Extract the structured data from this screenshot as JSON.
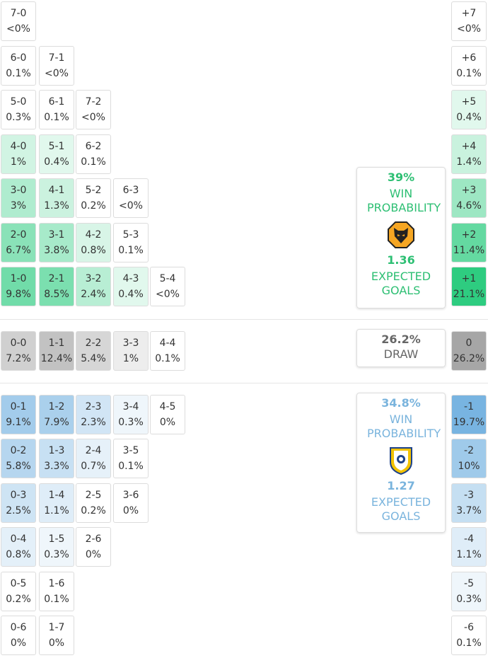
{
  "home_grid": [
    [
      [
        "7-0",
        "<0%"
      ]
    ],
    [
      [
        "6-0",
        "0.1%"
      ],
      [
        "7-1",
        "<0%"
      ]
    ],
    [
      [
        "5-0",
        "0.3%"
      ],
      [
        "6-1",
        "0.1%"
      ],
      [
        "7-2",
        "<0%"
      ]
    ],
    [
      [
        "4-0",
        "1%"
      ],
      [
        "5-1",
        "0.4%"
      ],
      [
        "6-2",
        "0.1%"
      ]
    ],
    [
      [
        "3-0",
        "3%"
      ],
      [
        "4-1",
        "1.3%"
      ],
      [
        "5-2",
        "0.2%"
      ],
      [
        "6-3",
        "<0%"
      ]
    ],
    [
      [
        "2-0",
        "6.7%"
      ],
      [
        "3-1",
        "3.8%"
      ],
      [
        "4-2",
        "0.8%"
      ],
      [
        "5-3",
        "0.1%"
      ]
    ],
    [
      [
        "1-0",
        "9.8%"
      ],
      [
        "2-1",
        "8.5%"
      ],
      [
        "3-2",
        "2.4%"
      ],
      [
        "4-3",
        "0.4%"
      ],
      [
        "5-4",
        "<0%"
      ]
    ]
  ],
  "draw_row": [
    [
      "0-0",
      "7.2%"
    ],
    [
      "1-1",
      "12.4%"
    ],
    [
      "2-2",
      "5.4%"
    ],
    [
      "3-3",
      "1%"
    ],
    [
      "4-4",
      "0.1%"
    ]
  ],
  "away_grid": [
    [
      [
        "0-1",
        "9.1%"
      ],
      [
        "1-2",
        "7.9%"
      ],
      [
        "2-3",
        "2.3%"
      ],
      [
        "3-4",
        "0.3%"
      ],
      [
        "4-5",
        "0%"
      ]
    ],
    [
      [
        "0-2",
        "5.8%"
      ],
      [
        "1-3",
        "3.3%"
      ],
      [
        "2-4",
        "0.7%"
      ],
      [
        "3-5",
        "0.1%"
      ]
    ],
    [
      [
        "0-3",
        "2.5%"
      ],
      [
        "1-4",
        "1.1%"
      ],
      [
        "2-5",
        "0.2%"
      ],
      [
        "3-6",
        "0%"
      ]
    ],
    [
      [
        "0-4",
        "0.8%"
      ],
      [
        "1-5",
        "0.3%"
      ],
      [
        "2-6",
        "0%"
      ]
    ],
    [
      [
        "0-5",
        "0.2%"
      ],
      [
        "1-6",
        "0.1%"
      ]
    ],
    [
      [
        "0-6",
        "0%"
      ],
      [
        "1-7",
        "0%"
      ]
    ]
  ],
  "home_margins": [
    [
      "+7",
      "<0%"
    ],
    [
      "+6",
      "0.1%"
    ],
    [
      "+5",
      "0.4%"
    ],
    [
      "+4",
      "1.4%"
    ],
    [
      "+3",
      "4.6%"
    ],
    [
      "+2",
      "11.4%"
    ],
    [
      "+1",
      "21.1%"
    ]
  ],
  "draw_margin": [
    "0",
    "26.2%"
  ],
  "away_margins": [
    [
      "-1",
      "19.7%"
    ],
    [
      "-2",
      "10%"
    ],
    [
      "-3",
      "3.7%"
    ],
    [
      "-4",
      "1.1%"
    ],
    [
      "-5",
      "0.3%"
    ],
    [
      "-6",
      "0.1%"
    ]
  ],
  "home_summary": {
    "win_pct": "39%",
    "win_label": "WIN PROBABILITY",
    "xg": "1.36",
    "xg_label": "EXPECTED GOALS"
  },
  "draw_summary": {
    "pct": "26.2%",
    "label": "DRAW"
  },
  "away_summary": {
    "win_pct": "34.8%",
    "win_label": "WIN PROBABILITY",
    "xg": "1.27",
    "xg_label": "EXPECTED GOALS"
  }
}
